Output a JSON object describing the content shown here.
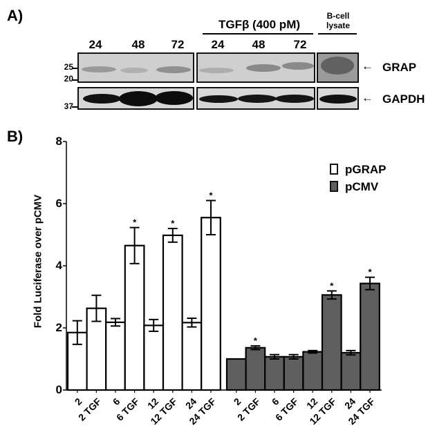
{
  "panel_a": {
    "label": "A)",
    "lane_labels_left": [
      "24",
      "48",
      "72"
    ],
    "treatment_header": "TGFβ (400 pM)",
    "lane_labels_right": [
      "24",
      "48",
      "72"
    ],
    "control_header_line1": "B-cell",
    "control_header_line2": "lysate",
    "mw_markers_top": [
      "25",
      "20"
    ],
    "mw_markers_bottom": [
      "37"
    ],
    "arrow_glyph": "←",
    "blot_labels": [
      "GRAP",
      "GAPDH"
    ]
  },
  "panel_b": {
    "label": "B)"
  },
  "chart_data": {
    "type": "bar",
    "title": "",
    "xlabel": "",
    "ylabel": "Fold Luciferase over pCMV",
    "ylim": [
      0,
      8
    ],
    "yticks": [
      "0",
      "2",
      "4",
      "6",
      "8"
    ],
    "grid": false,
    "legend_position": "upper right",
    "categories": [
      "2",
      "2 TGF",
      "6",
      "6 TGF",
      "12",
      "12 TGF",
      "24",
      "24 TGF"
    ],
    "series": [
      {
        "name": "pGRAP",
        "color": "#ffffff",
        "values": [
          1.85,
          2.63,
          2.18,
          4.65,
          2.08,
          4.98,
          2.17,
          5.55
        ],
        "errors": [
          0.38,
          0.42,
          0.12,
          0.58,
          0.19,
          0.22,
          0.14,
          0.55
        ],
        "significant": [
          false,
          false,
          false,
          true,
          false,
          true,
          false,
          true
        ]
      },
      {
        "name": "pCMV",
        "color": "#5f5f5f",
        "values": [
          1.0,
          1.36,
          1.07,
          1.07,
          1.23,
          3.06,
          1.2,
          3.43
        ],
        "errors": [
          0.01,
          0.06,
          0.07,
          0.07,
          0.04,
          0.13,
          0.07,
          0.2
        ],
        "significant": [
          false,
          true,
          false,
          false,
          false,
          true,
          false,
          true
        ]
      }
    ],
    "annotation": "*"
  }
}
